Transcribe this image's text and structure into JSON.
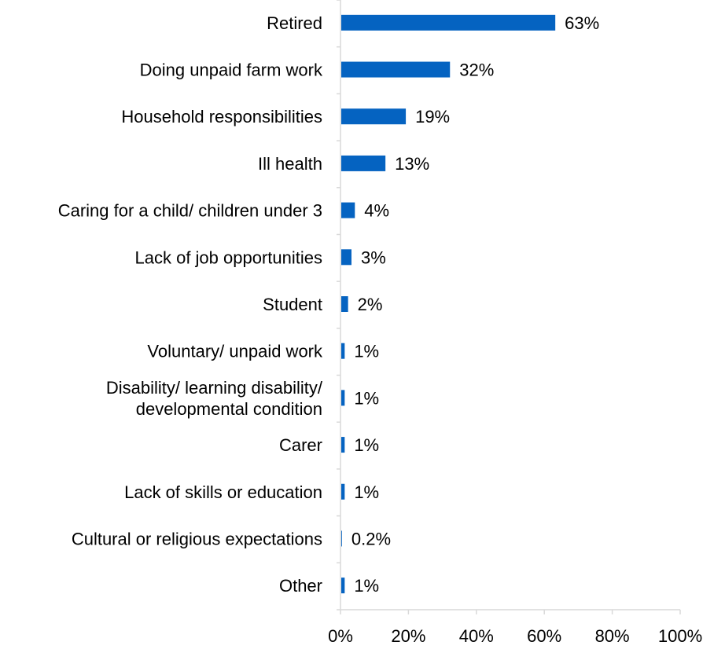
{
  "chart_data": {
    "type": "bar",
    "orientation": "horizontal",
    "categories": [
      [
        "Retired"
      ],
      [
        "Doing unpaid farm work"
      ],
      [
        "Household responsibilities"
      ],
      [
        "Ill health"
      ],
      [
        "Caring for a child/ children under 3"
      ],
      [
        "Lack of job opportunities"
      ],
      [
        "Student"
      ],
      [
        "Voluntary/ unpaid work"
      ],
      [
        "Disability/ learning disability/",
        "developmental condition"
      ],
      [
        "Carer"
      ],
      [
        "Lack of skills or education"
      ],
      [
        "Cultural or religious expectations"
      ],
      [
        "Other"
      ]
    ],
    "values": [
      63,
      32,
      19,
      13,
      4,
      3,
      2,
      1,
      1,
      1,
      1,
      0.2,
      1
    ],
    "value_labels": [
      "63%",
      "32%",
      "19%",
      "13%",
      "4%",
      "3%",
      "2%",
      "1%",
      "1%",
      "1%",
      "1%",
      "0.2%",
      "1%"
    ],
    "xlim": [
      0,
      100
    ],
    "x_ticks": [
      "0%",
      "20%",
      "40%",
      "60%",
      "80%",
      "100%"
    ],
    "bar_color": "#0563C1",
    "axis_color": "#D9D9D9",
    "grid": false,
    "legend": "none"
  }
}
